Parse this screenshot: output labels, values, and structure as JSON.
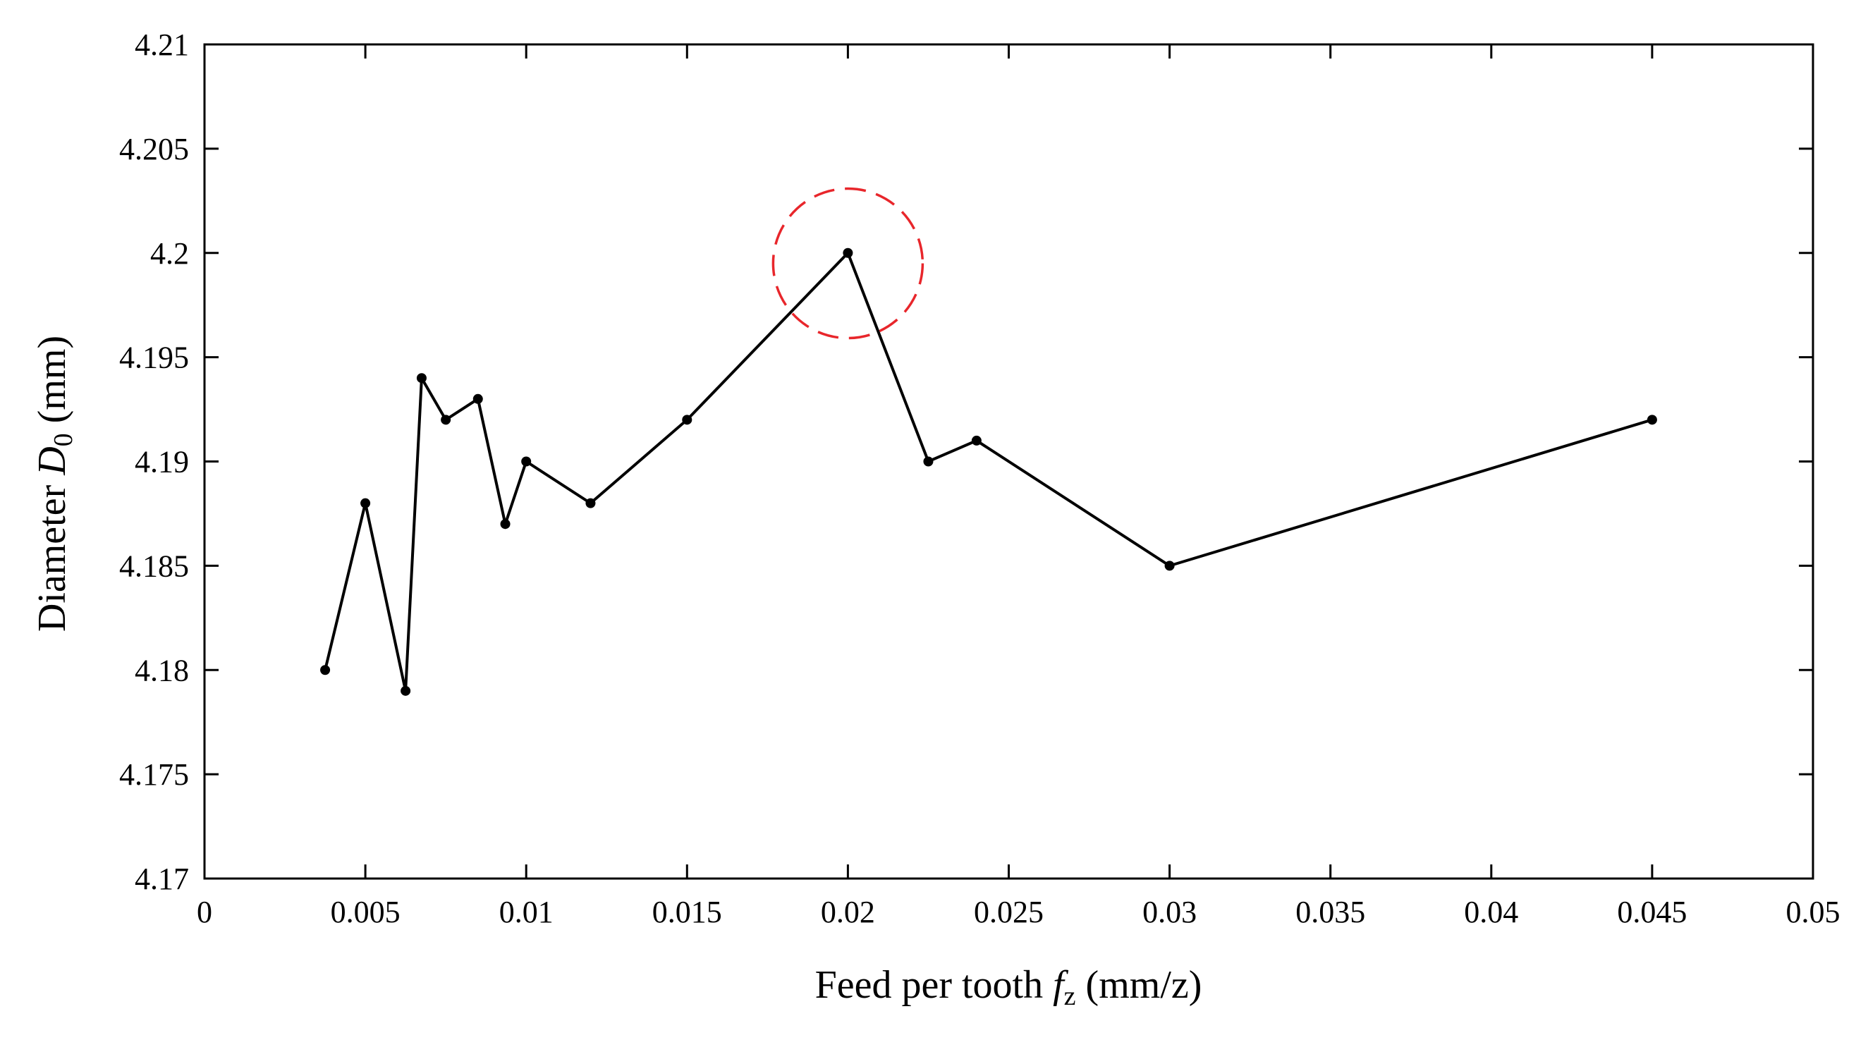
{
  "chart_data": {
    "type": "line",
    "title": "",
    "xlabel": {
      "prefix": "Feed per tooth ",
      "symbol": "f",
      "subscript": "z",
      "suffix": " (mm/z)"
    },
    "ylabel": {
      "prefix": "Diameter ",
      "symbol": "D",
      "subscript": "0",
      "suffix": " (mm)"
    },
    "xlim": [
      0,
      0.05
    ],
    "ylim": [
      4.17,
      4.21
    ],
    "xticks": [
      "0",
      "0.005",
      "0.01",
      "0.015",
      "0.02",
      "0.025",
      "0.03",
      "0.035",
      "0.04",
      "0.045",
      "0.05"
    ],
    "yticks": [
      "4.17",
      "4.175",
      "4.18",
      "4.185",
      "4.19",
      "4.195",
      "4.2",
      "4.205",
      "4.21"
    ],
    "grid": false,
    "series": [
      {
        "color": "#000000",
        "marker": "dot",
        "points": [
          {
            "x": 0.00375,
            "y": 4.18
          },
          {
            "x": 0.005,
            "y": 4.188
          },
          {
            "x": 0.00625,
            "y": 4.179
          },
          {
            "x": 0.00675,
            "y": 4.194
          },
          {
            "x": 0.0075,
            "y": 4.192
          },
          {
            "x": 0.0085,
            "y": 4.193
          },
          {
            "x": 0.00935,
            "y": 4.187
          },
          {
            "x": 0.01,
            "y": 4.19
          },
          {
            "x": 0.012,
            "y": 4.188
          },
          {
            "x": 0.015,
            "y": 4.192
          },
          {
            "x": 0.02,
            "y": 4.2
          },
          {
            "x": 0.0225,
            "y": 4.19
          },
          {
            "x": 0.024,
            "y": 4.191
          },
          {
            "x": 0.03,
            "y": 4.185
          },
          {
            "x": 0.045,
            "y": 4.192
          }
        ]
      }
    ],
    "annotations": [
      {
        "type": "dashed-circle",
        "x": 0.02,
        "y": 4.1995,
        "color": "#e8262b"
      }
    ]
  }
}
